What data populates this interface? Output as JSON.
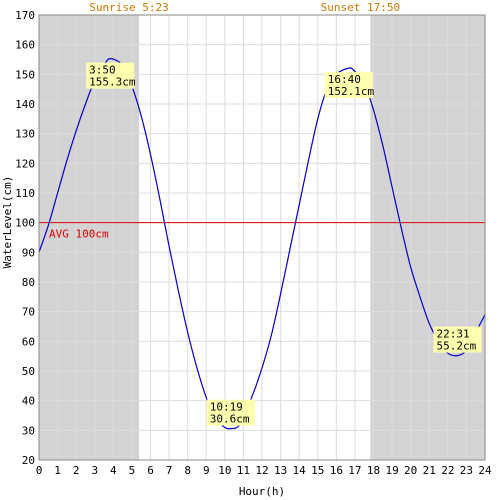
{
  "chart_data": {
    "type": "line",
    "xlabel": "Hour(h)",
    "ylabel": "WaterLevel(cm)",
    "xlim": [
      0,
      24
    ],
    "ylim": [
      20,
      170
    ],
    "x_ticks": [
      "0",
      "1",
      "2",
      "3",
      "4",
      "5",
      "6",
      "7",
      "8",
      "9",
      "10",
      "11",
      "12",
      "13",
      "14",
      "15",
      "16",
      "17",
      "18",
      "19",
      "20",
      "21",
      "22",
      "23",
      "24"
    ],
    "y_ticks": [
      "20",
      "30",
      "40",
      "50",
      "60",
      "70",
      "80",
      "90",
      "100",
      "110",
      "120",
      "130",
      "140",
      "150",
      "160",
      "170"
    ],
    "grid": true,
    "sunrise": {
      "label": "Sunrise 5:23",
      "hour": 5.383
    },
    "sunset": {
      "label": "Sunset 17:50",
      "hour": 17.833
    },
    "average": {
      "label": "AVG 100cm",
      "value": 100
    },
    "series": [
      {
        "x": [
          0,
          0.5,
          1,
          1.5,
          2,
          2.5,
          3,
          3.5,
          3.83,
          4.5,
          5,
          5.5,
          6,
          6.5,
          7,
          7.5,
          8,
          8.5,
          9,
          9.5,
          10,
          10.32,
          10.8,
          11.5,
          12,
          12.5,
          13,
          13.5,
          14,
          14.5,
          15,
          15.5,
          16,
          16.67,
          17,
          17.5,
          18,
          18.5,
          19,
          19.5,
          20,
          20.5,
          21,
          21.5,
          22,
          22.52,
          23,
          23.5,
          24
        ],
        "values": [
          90,
          99,
          110,
          121,
          131,
          140,
          148,
          153,
          155.3,
          153,
          146,
          136,
          123,
          108,
          92,
          77,
          63,
          51,
          41,
          34,
          31,
          30.6,
          32,
          42,
          51,
          62,
          76,
          91,
          106,
          121,
          135,
          145,
          150,
          152.1,
          151,
          147,
          138,
          126,
          112,
          98,
          85,
          75,
          66,
          60,
          56,
          55.2,
          57,
          63,
          69
        ]
      }
    ],
    "annotations": [
      {
        "time": "3:50",
        "value": "155.3cm",
        "x": 3.83,
        "y": 155.3
      },
      {
        "time": "10:19",
        "value": "30.6cm",
        "x": 10.32,
        "y": 30.6
      },
      {
        "time": "16:40",
        "value": "152.1cm",
        "x": 16.67,
        "y": 152.1
      },
      {
        "time": "22:31",
        "value": "55.2cm",
        "x": 22.52,
        "y": 55.2
      }
    ],
    "colors": {
      "night": "#d3d3d3",
      "grid": "#dddddd",
      "line": "#0000cc",
      "average": "#dd0000",
      "sun_text": "#cc7700",
      "annotation_bg": "#ffffb0"
    }
  }
}
